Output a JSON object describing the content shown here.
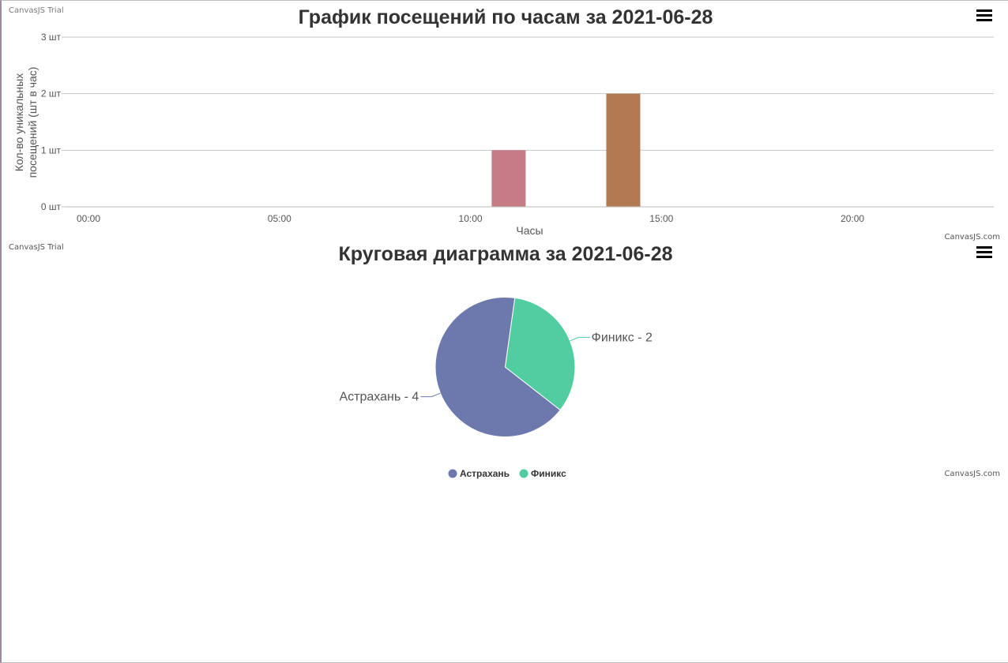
{
  "watermark": "CanvasJS Trial",
  "credit": "CanvasJS.com",
  "menu_icon": "hamburger-menu-icon",
  "chart_data": [
    {
      "type": "bar",
      "title": "График посещений по часам за 2021-06-28",
      "xlabel": "Часы",
      "ylabel": "Кол-во уникальных посещений (шт в час)",
      "x_tick_labels": [
        "00:00",
        "05:00",
        "10:00",
        "15:00",
        "20:00"
      ],
      "x_ticks_hours": [
        0,
        5,
        10,
        15,
        20
      ],
      "xlim": [
        -0.6,
        23.7
      ],
      "y_tick_labels": [
        "0 шт",
        "1 шт",
        "2 шт",
        "3 шт"
      ],
      "ylim": [
        0,
        3
      ],
      "grid": true,
      "bars": [
        {
          "hour": 11,
          "value": 1,
          "color": "#c67b86"
        },
        {
          "hour": 14,
          "value": 2,
          "color": "#b27a52"
        }
      ]
    },
    {
      "type": "pie",
      "title": "Круговая диаграмма за 2021-06-28",
      "legend_position": "bottom",
      "slices": [
        {
          "name": "Астрахань",
          "value": 4,
          "color": "#6d78ad",
          "label": "Астрахань - 4"
        },
        {
          "name": "Финикс",
          "value": 2,
          "color": "#51cda0",
          "label": "Финикс - 2"
        }
      ]
    }
  ]
}
